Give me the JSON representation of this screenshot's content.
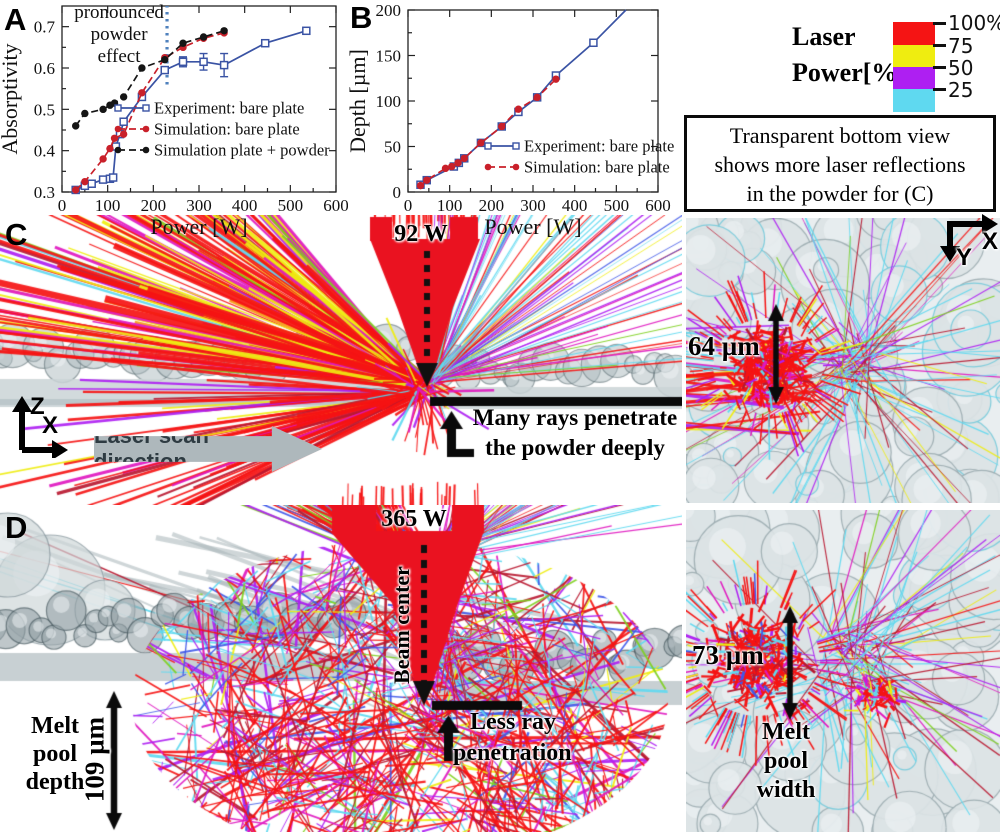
{
  "chart_data": [
    {
      "type": "line",
      "panel": "A",
      "title": "",
      "xlabel": "Power [W]",
      "ylabel": "Absorptivity",
      "xlim": [
        0,
        600
      ],
      "ylim": [
        0.3,
        0.75
      ],
      "xticks": [
        0,
        100,
        200,
        300,
        400,
        500,
        600
      ],
      "yticks": [
        0.3,
        0.4,
        0.5,
        0.6,
        0.7
      ],
      "grid": false,
      "legend_pos": [
        118,
        108
      ],
      "annotation": {
        "lines": [
          "pronounced",
          "powder",
          "effect"
        ],
        "x": 125,
        "y_start": 0.735,
        "dy": 0.053
      },
      "vline": {
        "x": 230,
        "y1": 0.56,
        "y2": 0.75,
        "color": "#4f81bd",
        "style": "dotted"
      },
      "series": [
        {
          "name": "Experiment: bare plate",
          "color": "#3a53a4",
          "line": "solid",
          "marker": "square-open",
          "x": [
            30,
            50,
            65,
            90,
            105,
            112,
            118,
            127,
            135,
            175,
            225,
            265,
            310,
            355,
            445,
            535
          ],
          "y": [
            0.305,
            0.315,
            0.32,
            0.33,
            0.332,
            0.335,
            0.41,
            0.44,
            0.47,
            0.53,
            0.595,
            0.615,
            0.615,
            0.607,
            0.66,
            0.69
          ],
          "yerr": [
            0,
            0,
            0,
            0,
            0,
            0,
            0,
            0,
            0,
            0,
            0.008,
            0.012,
            0.02,
            0.028,
            0,
            0
          ]
        },
        {
          "name": "Simulation: bare plate",
          "color": "#c9202a",
          "line": "dashed",
          "marker": "circle-filled",
          "x": [
            30,
            50,
            90,
            105,
            115,
            135,
            175,
            225,
            265,
            310,
            355
          ],
          "y": [
            0.305,
            0.325,
            0.38,
            0.405,
            0.43,
            0.44,
            0.54,
            0.625,
            0.65,
            0.672,
            0.685
          ]
        },
        {
          "name": "Simulation plate + powder",
          "color": "#151515",
          "line": "dashed",
          "marker": "circle-filled",
          "x": [
            30,
            50,
            90,
            105,
            115,
            135,
            175,
            225,
            265,
            310,
            355
          ],
          "y": [
            0.46,
            0.49,
            0.5,
            0.51,
            0.515,
            0.53,
            0.6,
            0.62,
            0.66,
            0.675,
            0.69
          ]
        }
      ]
    },
    {
      "type": "line",
      "panel": "B",
      "title": "",
      "xlabel": "Power [W]",
      "ylabel": "Depth [µm]",
      "xlim": [
        0,
        600
      ],
      "ylim": [
        0,
        200
      ],
      "xticks": [
        0,
        100,
        200,
        300,
        400,
        500,
        600
      ],
      "yticks": [
        0,
        50,
        100,
        150,
        200
      ],
      "grid": false,
      "legend_pos": [
        140,
        146
      ],
      "series": [
        {
          "name": "Experiment: bare plate",
          "color": "#3a53a4",
          "line": "solid",
          "marker": "square-open",
          "no_marker_last": true,
          "x": [
            30,
            45,
            110,
            122,
            135,
            175,
            225,
            265,
            310,
            355,
            445,
            523
          ],
          "y": [
            8,
            13,
            28,
            32,
            37,
            54,
            72,
            88,
            104,
            128,
            164,
            200
          ]
        },
        {
          "name": "Simulation: bare plate",
          "color": "#c9202a",
          "line": "dashed",
          "marker": "circle-filled",
          "x": [
            30,
            45,
            90,
            105,
            120,
            135,
            175,
            225,
            265,
            310,
            355
          ],
          "y": [
            7,
            13,
            26,
            28,
            32,
            37,
            54,
            72,
            91,
            104,
            124
          ]
        }
      ]
    }
  ],
  "colorbar": {
    "title_lines": [
      "Laser",
      "Power[%]"
    ],
    "tick_labels": [
      "100%",
      "75",
      "50",
      "25"
    ],
    "segment_colors": [
      "#f51414",
      "#efed10",
      "#ae1ff2",
      "#5fd9f0"
    ]
  },
  "note_box": {
    "lines": [
      "Transparent bottom view",
      "shows more laser reflections",
      "in the powder for (C)"
    ]
  },
  "panel_c": {
    "label": "C",
    "power_label": "92 W",
    "penetration_note_lines": [
      "Many rays penetrate",
      "the powder deeply"
    ],
    "scan_direction_label": "Laser scan direction",
    "axes": {
      "up": "Z",
      "right": "X"
    },
    "inset": {
      "measure_label": "64 µm",
      "axes": {
        "right": "X",
        "down": "Y"
      }
    }
  },
  "panel_d": {
    "label": "D",
    "power_label": "365 W",
    "beam_center_label": "Beam center",
    "penetration_note_lines": [
      "Less ray",
      "penetration"
    ],
    "melt_pool_depth_lines": [
      "Melt",
      "pool",
      "depth"
    ],
    "depth_value": "109 µm",
    "inset": {
      "measure_label": "73 µm",
      "melt_pool_width_lines": [
        "Melt",
        "pool",
        "width"
      ]
    }
  }
}
